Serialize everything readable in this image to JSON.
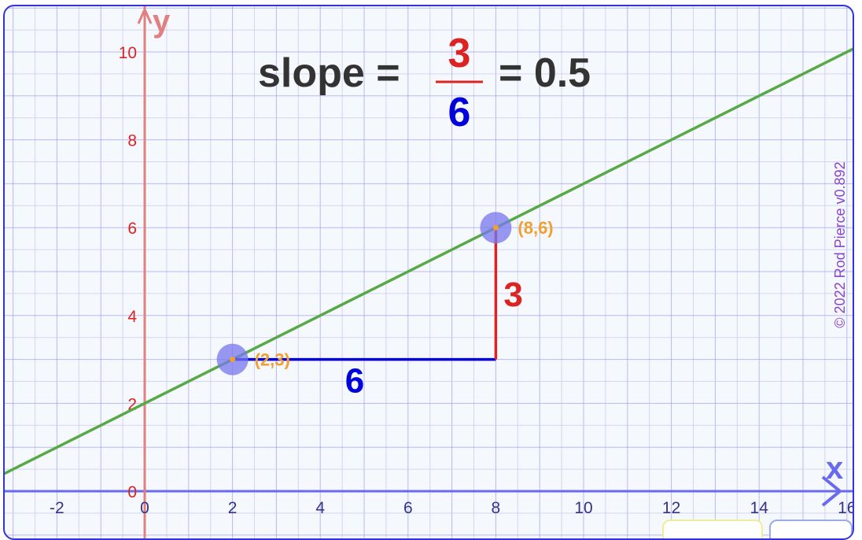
{
  "chart_data": {
    "type": "line",
    "title": "",
    "equation": {
      "prefix": "slope =",
      "numerator": "3",
      "denominator": "6",
      "suffix": "= 0.5"
    },
    "xlabel": "x",
    "ylabel": "y",
    "xlim": [
      -3.2,
      16.2
    ],
    "ylim": [
      -0.5,
      11
    ],
    "x_ticks": [
      -2,
      0,
      2,
      4,
      6,
      8,
      10,
      12,
      14,
      16
    ],
    "y_ticks": [
      0,
      2,
      4,
      6,
      8,
      10
    ],
    "grid": true,
    "line": {
      "slope": 0.5,
      "intercept": 2,
      "color": "#55aa44"
    },
    "points": [
      {
        "x": 2,
        "y": 3,
        "label": "(2,3)"
      },
      {
        "x": 8,
        "y": 6,
        "label": "(8,6)"
      }
    ],
    "run": {
      "from": [
        2,
        3
      ],
      "to": [
        8,
        3
      ],
      "label": "6",
      "color": "#0000dd"
    },
    "rise": {
      "from": [
        8,
        3
      ],
      "to": [
        8,
        6
      ],
      "label": "3",
      "color": "#dd2222"
    },
    "watermark": "© 2022 Rod Pierce v0.892"
  },
  "colors": {
    "background": "#f5f8fc",
    "grid_major": "#8888ee",
    "grid_minor": "#ccccf2",
    "x_axis": "#6a6aee",
    "y_axis": "#e08080",
    "point_halo": "#7777ee",
    "point_dot": "#f0a030",
    "point_label": "#f0a030",
    "equation_text": "#333333",
    "watermark": "#8844cc"
  }
}
